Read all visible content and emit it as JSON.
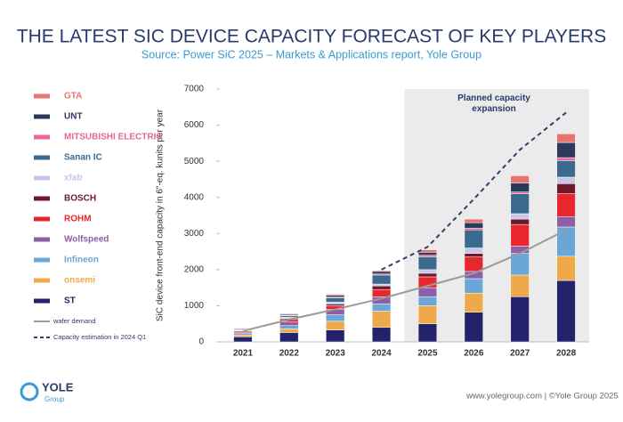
{
  "chart_data": {
    "type": "bar",
    "stacked": true,
    "title": "THE LATEST SIC DEVICE CAPACITY FORECAST OF KEY PLAYERS",
    "subtitle": "Source: Power SiC 2025 – Markets & Applications report, Yole Group",
    "y_label": "SiC device front-end capacity in 6\"-eq. kunits per year",
    "annotation": "Planned capacity expansion",
    "shaded_from": "2025",
    "footer": "www.yolegroup.com | ©Yole Group 2025",
    "logo": "YOLE",
    "logo_sub": "Group",
    "categories": [
      "2021",
      "2022",
      "2023",
      "2024",
      "2025",
      "2026",
      "2027",
      "2028"
    ],
    "ylim": [
      0,
      7000
    ],
    "yticks": [
      0,
      1000,
      2000,
      3000,
      4000,
      5000,
      6000,
      7000
    ],
    "series": [
      {
        "name": "ST",
        "color": "#23236b",
        "values": [
          140,
          260,
          330,
          400,
          500,
          820,
          1250,
          1700
        ]
      },
      {
        "name": "onsemi",
        "color": "#f0a94a",
        "values": [
          50,
          100,
          240,
          450,
          500,
          530,
          600,
          670
        ]
      },
      {
        "name": "Infineon",
        "color": "#6aa6d6",
        "values": [
          40,
          90,
          180,
          200,
          250,
          400,
          600,
          810
        ]
      },
      {
        "name": "Wolfspeed",
        "color": "#8e5fa8",
        "values": [
          40,
          100,
          150,
          200,
          250,
          200,
          200,
          290
        ]
      },
      {
        "name": "ROHM",
        "color": "#e8262e",
        "values": [
          30,
          70,
          100,
          200,
          300,
          400,
          600,
          640
        ]
      },
      {
        "name": "BOSCH",
        "color": "#6e1a2a",
        "values": [
          10,
          30,
          50,
          100,
          100,
          100,
          150,
          270
        ]
      },
      {
        "name": "xfab",
        "color": "#c6c8e6",
        "values": [
          10,
          30,
          50,
          50,
          100,
          150,
          150,
          180
        ]
      },
      {
        "name": "Sanan IC",
        "color": "#3b6a8f",
        "values": [
          20,
          40,
          120,
          250,
          350,
          500,
          550,
          460
        ]
      },
      {
        "name": "MITSUBISHI ELECTRIC",
        "color": "#e6679a",
        "values": [
          5,
          10,
          20,
          30,
          50,
          50,
          50,
          80
        ]
      },
      {
        "name": "UNT",
        "color": "#2b3a5c",
        "values": [
          20,
          30,
          50,
          70,
          80,
          150,
          250,
          420
        ]
      },
      {
        "name": "GTA",
        "color": "#e8736f",
        "values": [
          15,
          20,
          30,
          30,
          70,
          100,
          200,
          240
        ]
      }
    ],
    "lines": [
      {
        "name": "wafer demand",
        "color": "#9a9a9a",
        "dashed": false,
        "values": [
          300,
          620,
          900,
          1200,
          1550,
          1900,
          2450,
          3100
        ]
      },
      {
        "name": "Capacity estimation in 2024 Q1",
        "color": "#2f3f6f",
        "dashed": true,
        "values": [
          null,
          null,
          null,
          2000,
          2630,
          3950,
          5320,
          6350
        ]
      }
    ]
  }
}
